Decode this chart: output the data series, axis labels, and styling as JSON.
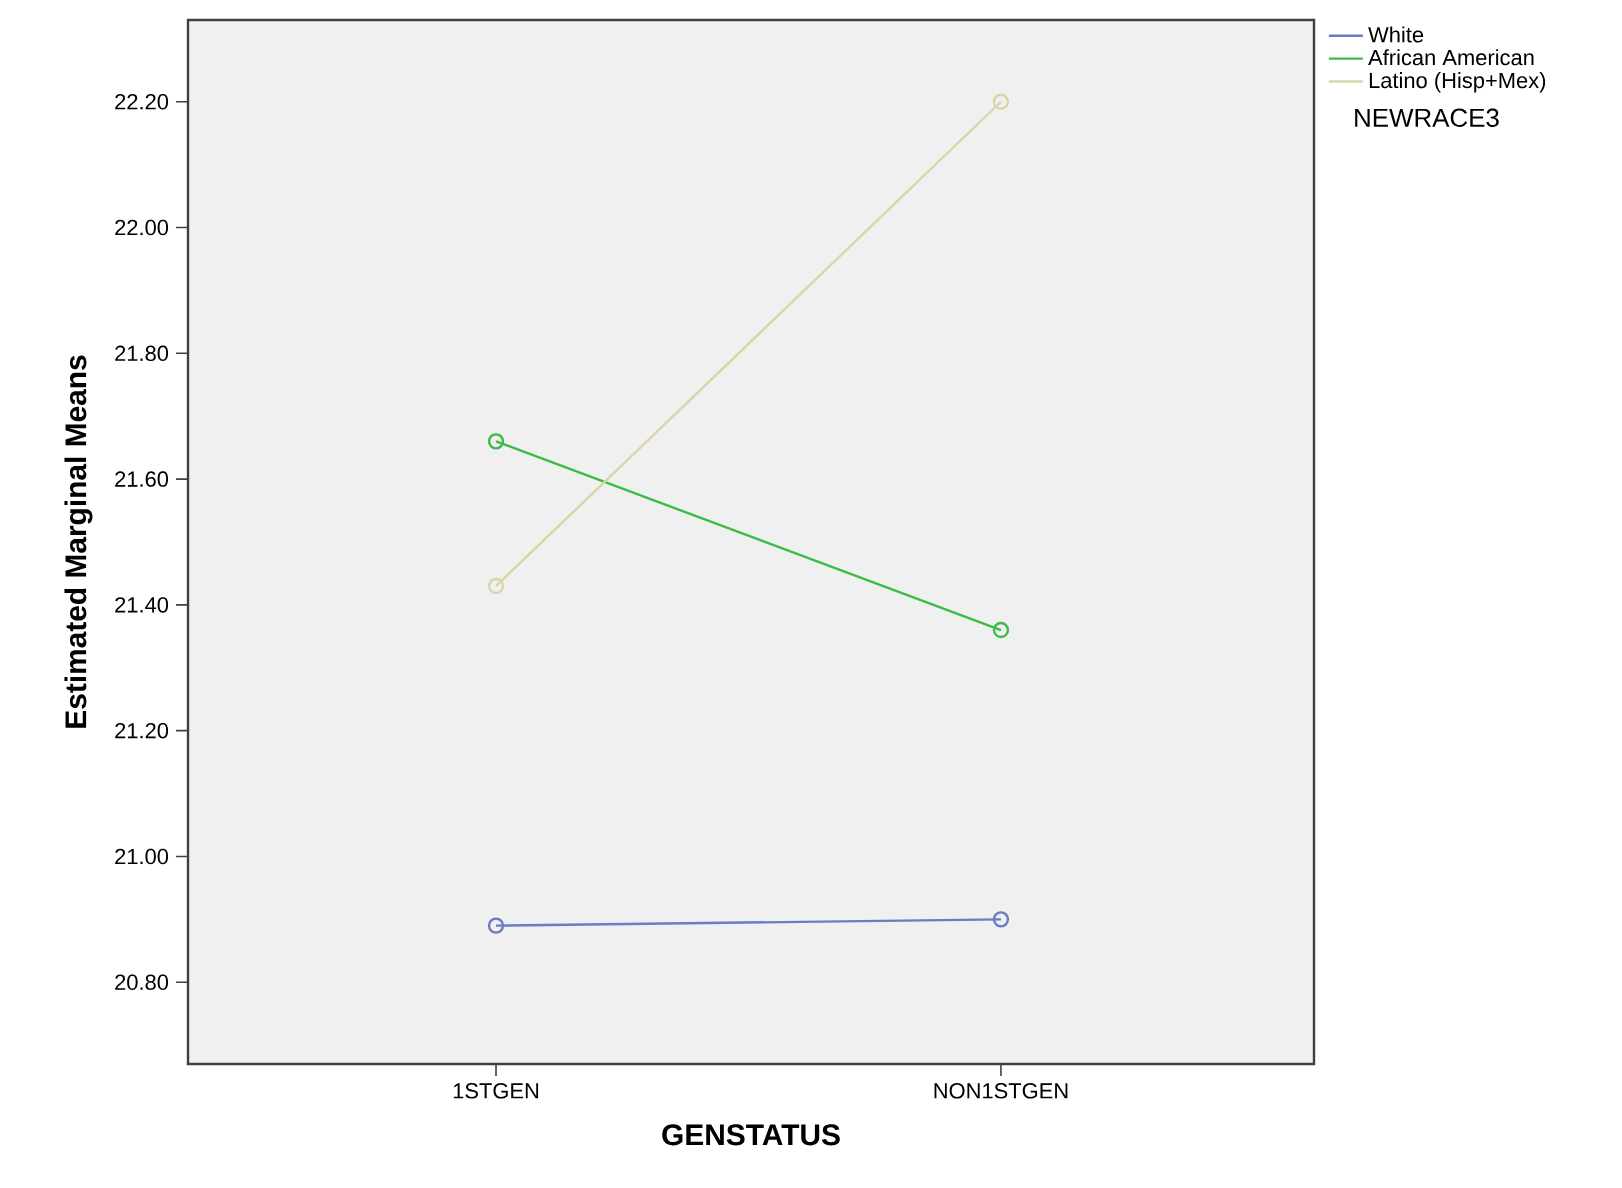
{
  "chart_data": {
    "type": "line",
    "xlabel": "GENSTATUS",
    "ylabel": "Estimated Marginal Means",
    "legend_title": "NEWRACE3",
    "categories": [
      "1STGEN",
      "NON1STGEN"
    ],
    "series": [
      {
        "name": "White",
        "color": "#6b7bc8",
        "values": [
          20.89,
          20.9
        ]
      },
      {
        "name": "African American",
        "color": "#3dbb45",
        "values": [
          21.66,
          21.36
        ]
      },
      {
        "name": "Latino (Hisp+Mex)",
        "color": "#d9d5a9",
        "values": [
          21.43,
          22.2
        ]
      }
    ],
    "ylim": [
      20.67,
      22.33
    ],
    "yticks": [
      {
        "value": 20.8,
        "label": "20.80"
      },
      {
        "value": 21.0,
        "label": "21.00"
      },
      {
        "value": 21.2,
        "label": "21.20"
      },
      {
        "value": 21.4,
        "label": "21.40"
      },
      {
        "value": 21.6,
        "label": "21.60"
      },
      {
        "value": 21.8,
        "label": "21.80"
      },
      {
        "value": 22.0,
        "label": "22.00"
      },
      {
        "value": 22.2,
        "label": "22.20"
      }
    ],
    "grid": false,
    "legend": "top right",
    "marker": "circle",
    "line_style": "solid"
  }
}
